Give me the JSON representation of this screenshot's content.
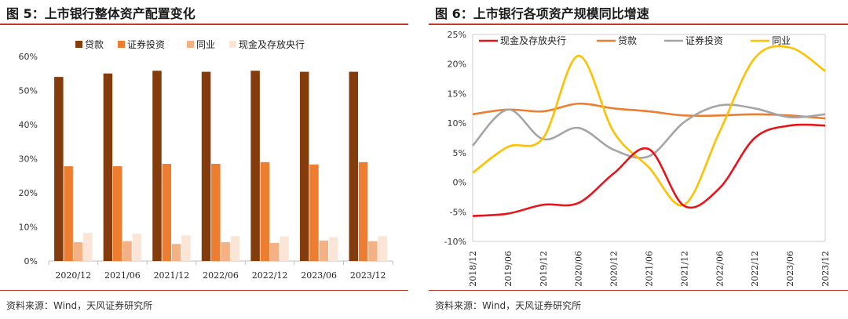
{
  "left": {
    "title": "图 5：上市银行整体资产配置变化",
    "source": "资料来源：Wind，天风证券研究所"
  },
  "right": {
    "title": "图 6：上市银行各项资产规模同比增速",
    "source": "资料来源：Wind，天风证券研究所"
  },
  "chart_data": [
    {
      "type": "bar",
      "title": "",
      "categories": [
        "2020/12",
        "2021/06",
        "2021/12",
        "2022/06",
        "2022/12",
        "2023/06",
        "2023/12"
      ],
      "series": [
        {
          "name": "贷款",
          "color": "#843c0c",
          "values": [
            54,
            55,
            55.8,
            55.5,
            55.8,
            55.5,
            55.5
          ]
        },
        {
          "name": "证券投资",
          "color": "#ed7d31",
          "values": [
            27.8,
            27.8,
            28.5,
            28.5,
            29,
            28.3,
            29
          ]
        },
        {
          "name": "同业",
          "color": "#f4b183",
          "values": [
            5.5,
            5.8,
            5.0,
            5.5,
            5.3,
            6.0,
            5.8
          ]
        },
        {
          "name": "现金及存放央行",
          "color": "#fbe5d6",
          "values": [
            8.3,
            8.0,
            7.5,
            7.3,
            7.2,
            7.0,
            7.3
          ]
        }
      ],
      "ylim": [
        0,
        60
      ],
      "yticks": [
        "0%",
        "10%",
        "20%",
        "30%",
        "40%",
        "50%",
        "60%"
      ],
      "xlabel": "",
      "ylabel": "",
      "legend": "top"
    },
    {
      "type": "line",
      "title": "",
      "x": [
        "2018/12",
        "2019/06",
        "2019/12",
        "2020/06",
        "2020/12",
        "2021/06",
        "2021/12",
        "2022/06",
        "2022/12",
        "2023/06",
        "2023/12"
      ],
      "series": [
        {
          "name": "现金及存放央行",
          "color": "#e8141a",
          "values": [
            -5.7,
            -5.3,
            -3.8,
            -3.5,
            1.5,
            5.6,
            -4.0,
            -1.0,
            7.5,
            9.6,
            9.6
          ]
        },
        {
          "name": "贷款",
          "color": "#ed7d31",
          "values": [
            11.5,
            12.3,
            12.0,
            13.3,
            12.5,
            12.0,
            11.3,
            11.3,
            11.5,
            11.3,
            10.8
          ]
        },
        {
          "name": "证券投资",
          "color": "#a5a5a5",
          "values": [
            6.2,
            12.3,
            7.3,
            9.2,
            5.5,
            4.4,
            10.2,
            13.0,
            12.5,
            11.0,
            11.5
          ]
        },
        {
          "name": "同业",
          "color": "#ffc000",
          "values": [
            1.6,
            6.0,
            7.5,
            21.4,
            8.5,
            2.5,
            -3.8,
            8.5,
            21.0,
            22.8,
            18.8
          ]
        }
      ],
      "ylim": [
        -10,
        25
      ],
      "yticks": [
        "-10%",
        "-5%",
        "0%",
        "5%",
        "10%",
        "15%",
        "20%",
        "25%"
      ],
      "xlabel": "",
      "ylabel": "",
      "legend": "top"
    }
  ]
}
